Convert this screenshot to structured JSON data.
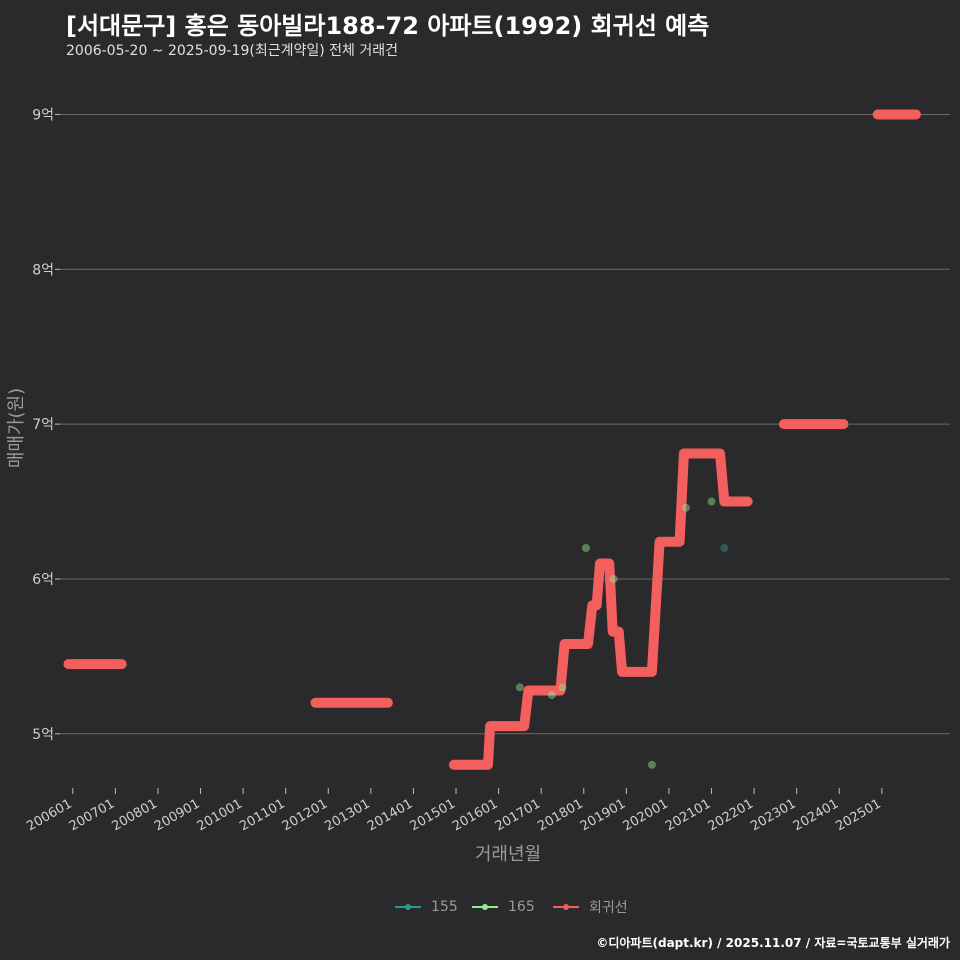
{
  "header": {
    "title": "[서대문구] 홍은 동아빌라188-72 아파트(1992) 회귀선 예측",
    "subtitle": "2006-05-20 ~ 2025-09-19(최근계약일) 전체 거래건"
  },
  "footer": {
    "credit": "©디아파트(dapt.kr) / 2025.11.07 / 자료=국토교통부 실거래가"
  },
  "colors": {
    "background": "#2a292b",
    "grid": "#6a6a6a",
    "s155": "#2a9d8f",
    "s165": "#90ee90",
    "regression": "#f25f5c"
  },
  "chart_data": {
    "type": "line",
    "title": "[서대문구] 홍은 동아빌라188-72 아파트(1992) 회귀선 예측",
    "xlabel": "거래년월",
    "ylabel": "매매가(원)",
    "xlim": [
      2005.7,
      2026.6
    ],
    "ylim": [
      4.65,
      9.3
    ],
    "x_ticks": [
      {
        "label": "200601",
        "x": 2006
      },
      {
        "label": "200701",
        "x": 2007
      },
      {
        "label": "200801",
        "x": 2008
      },
      {
        "label": "200901",
        "x": 2009
      },
      {
        "label": "201001",
        "x": 2010
      },
      {
        "label": "201101",
        "x": 2011
      },
      {
        "label": "201201",
        "x": 2012
      },
      {
        "label": "201301",
        "x": 2013
      },
      {
        "label": "201401",
        "x": 2014
      },
      {
        "label": "201501",
        "x": 2015
      },
      {
        "label": "201601",
        "x": 2016
      },
      {
        "label": "201701",
        "x": 2017
      },
      {
        "label": "201801",
        "x": 2018
      },
      {
        "label": "201901",
        "x": 2019
      },
      {
        "label": "202001",
        "x": 2020
      },
      {
        "label": "202101",
        "x": 2021
      },
      {
        "label": "202201",
        "x": 2022
      },
      {
        "label": "202301",
        "x": 2023
      },
      {
        "label": "202401",
        "x": 2024
      },
      {
        "label": "202501",
        "x": 2025
      }
    ],
    "y_ticks": [
      {
        "label": "5억",
        "y": 5
      },
      {
        "label": "6억",
        "y": 6
      },
      {
        "label": "7억",
        "y": 7
      },
      {
        "label": "8억",
        "y": 8
      },
      {
        "label": "9억",
        "y": 9
      }
    ],
    "legend": [
      "155",
      "165",
      "회귀선"
    ],
    "series": [
      {
        "name": "155",
        "points": [
          [
            2021.3,
            6.2
          ]
        ]
      },
      {
        "name": "165",
        "points": [
          [
            2016.5,
            5.3
          ],
          [
            2017.25,
            5.25
          ],
          [
            2017.5,
            5.3
          ],
          [
            2018.05,
            6.2
          ],
          [
            2018.7,
            6.0
          ],
          [
            2019.6,
            4.8
          ],
          [
            2020.4,
            6.46
          ],
          [
            2021.0,
            6.5
          ]
        ]
      },
      {
        "name": "회귀선",
        "segments": [
          [
            [
              2005.9,
              5.45
            ],
            [
              2007.15,
              5.45
            ]
          ],
          [
            [
              2011.7,
              5.2
            ],
            [
              2013.4,
              5.2
            ]
          ],
          [
            [
              2014.95,
              4.8
            ],
            [
              2015.75,
              4.8
            ],
            [
              2015.8,
              5.05
            ],
            [
              2016.6,
              5.05
            ],
            [
              2016.7,
              5.28
            ],
            [
              2017.45,
              5.28
            ],
            [
              2017.55,
              5.58
            ],
            [
              2018.1,
              5.58
            ],
            [
              2018.2,
              5.83
            ],
            [
              2018.3,
              5.83
            ],
            [
              2018.38,
              6.1
            ],
            [
              2018.6,
              6.1
            ],
            [
              2018.68,
              5.66
            ],
            [
              2018.82,
              5.66
            ],
            [
              2018.9,
              5.4
            ],
            [
              2019.6,
              5.4
            ],
            [
              2019.78,
              6.24
            ],
            [
              2020.25,
              6.24
            ],
            [
              2020.35,
              6.81
            ],
            [
              2021.2,
              6.81
            ],
            [
              2021.3,
              6.5
            ],
            [
              2021.85,
              6.5
            ]
          ],
          [
            [
              2022.7,
              7.0
            ],
            [
              2024.1,
              7.0
            ]
          ],
          [
            [
              2024.9,
              9.0
            ],
            [
              2025.8,
              9.0
            ]
          ]
        ]
      }
    ]
  }
}
